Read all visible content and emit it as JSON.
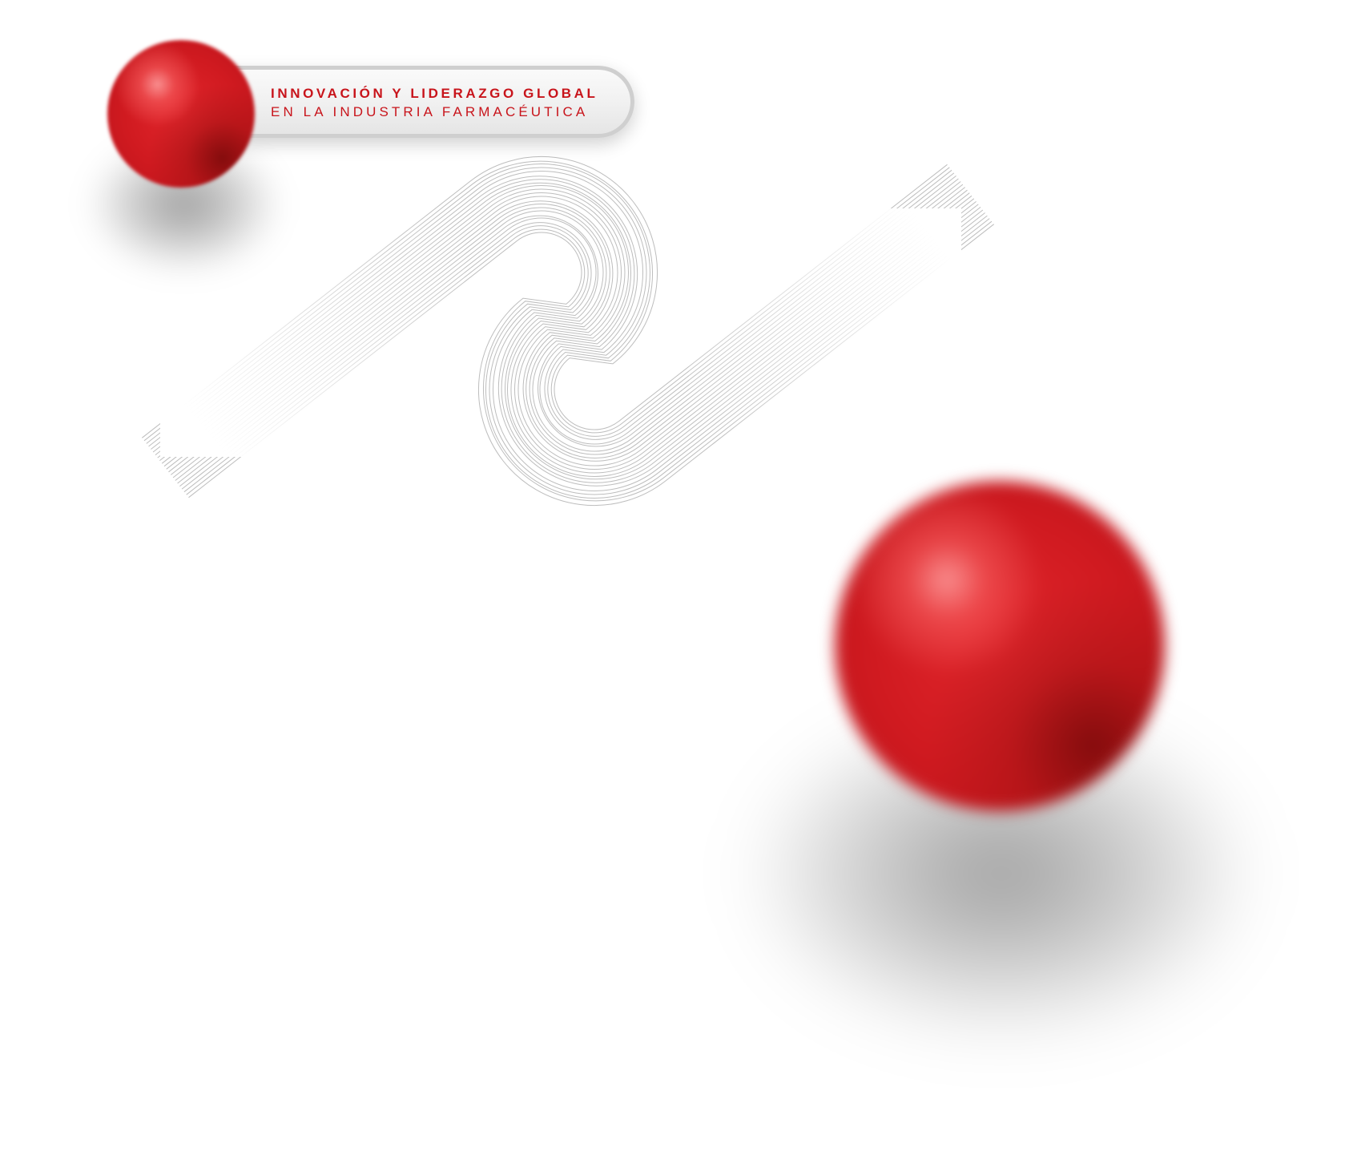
{
  "badge": {
    "line1": "INNOVACIÓN Y LIDERAZGO GLOBAL",
    "line2": "EN LA INDUSTRIA FARMACÉUTICA"
  },
  "colors": {
    "accent": "#c8141b",
    "sphere": "#d01a20",
    "background": "#ffffff",
    "lines": "#bdbdbd"
  },
  "icons": {
    "small_sphere": "red-sphere-icon",
    "large_sphere": "red-sphere-icon",
    "wave": "line-wave-icon"
  }
}
